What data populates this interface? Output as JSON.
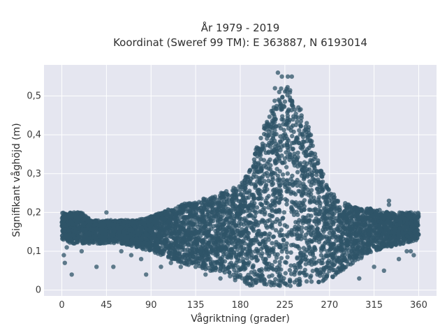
{
  "chart_data": {
    "type": "scatter",
    "title_lines": [
      "År 1979 - 2019",
      "Koordinat (Sweref 99 TM): E 363887, N 6193014"
    ],
    "xlabel": "Vågriktning (grader)",
    "ylabel": "Signifikant våghöjd (m)",
    "xlim": [
      -18,
      378
    ],
    "ylim": [
      -0.015,
      0.58
    ],
    "xticks": [
      0,
      45,
      90,
      135,
      180,
      225,
      270,
      315,
      360
    ],
    "xtick_labels": [
      "0",
      "45",
      "90",
      "135",
      "180",
      "225",
      "270",
      "315",
      "360"
    ],
    "yticks": [
      0,
      0.1,
      0.2,
      0.3,
      0.4,
      0.5
    ],
    "ytick_labels": [
      "0",
      "0,1",
      "0,2",
      "0,3",
      "0,4",
      "0,5"
    ],
    "grid": true,
    "colors": {
      "marker": "#2f5468",
      "plot_bg": "#e5e6f0",
      "grid": "#ffffff"
    },
    "envelope": {
      "x": [
        0,
        10,
        20,
        30,
        45,
        60,
        75,
        90,
        100,
        110,
        120,
        135,
        150,
        160,
        170,
        180,
        190,
        200,
        210,
        220,
        225,
        230,
        240,
        250,
        260,
        270,
        280,
        290,
        300,
        315,
        330,
        345,
        360
      ],
      "upper": [
        0.2,
        0.2,
        0.2,
        0.18,
        0.18,
        0.18,
        0.18,
        0.19,
        0.2,
        0.21,
        0.22,
        0.23,
        0.24,
        0.25,
        0.26,
        0.27,
        0.31,
        0.4,
        0.46,
        0.52,
        0.53,
        0.52,
        0.47,
        0.42,
        0.32,
        0.26,
        0.23,
        0.22,
        0.21,
        0.21,
        0.2,
        0.2,
        0.2
      ],
      "lower": [
        0.13,
        0.12,
        0.12,
        0.12,
        0.12,
        0.12,
        0.11,
        0.1,
        0.09,
        0.08,
        0.07,
        0.06,
        0.05,
        0.04,
        0.03,
        0.02,
        0.01,
        0.01,
        0.01,
        0.01,
        0.01,
        0.01,
        0.01,
        0.01,
        0.02,
        0.03,
        0.04,
        0.06,
        0.08,
        0.1,
        0.11,
        0.12,
        0.13
      ]
    },
    "outliers": [
      {
        "x": 2,
        "y": 0.09
      },
      {
        "x": 3,
        "y": 0.07
      },
      {
        "x": 5,
        "y": 0.11
      },
      {
        "x": 10,
        "y": 0.04
      },
      {
        "x": 20,
        "y": 0.1
      },
      {
        "x": 35,
        "y": 0.06
      },
      {
        "x": 45,
        "y": 0.2
      },
      {
        "x": 52,
        "y": 0.06
      },
      {
        "x": 60,
        "y": 0.1
      },
      {
        "x": 70,
        "y": 0.09
      },
      {
        "x": 80,
        "y": 0.08
      },
      {
        "x": 85,
        "y": 0.04
      },
      {
        "x": 95,
        "y": 0.1
      },
      {
        "x": 100,
        "y": 0.06
      },
      {
        "x": 110,
        "y": 0.07
      },
      {
        "x": 120,
        "y": 0.06
      },
      {
        "x": 130,
        "y": 0.08
      },
      {
        "x": 135,
        "y": 0.06
      },
      {
        "x": 145,
        "y": 0.04
      },
      {
        "x": 150,
        "y": 0.05
      },
      {
        "x": 160,
        "y": 0.03
      },
      {
        "x": 218,
        "y": 0.56
      },
      {
        "x": 222,
        "y": 0.55
      },
      {
        "x": 228,
        "y": 0.55
      },
      {
        "x": 232,
        "y": 0.55
      },
      {
        "x": 215,
        "y": 0.52
      },
      {
        "x": 300,
        "y": 0.03
      },
      {
        "x": 315,
        "y": 0.06
      },
      {
        "x": 325,
        "y": 0.05
      },
      {
        "x": 340,
        "y": 0.08
      },
      {
        "x": 348,
        "y": 0.1
      },
      {
        "x": 352,
        "y": 0.1
      },
      {
        "x": 355,
        "y": 0.09
      },
      {
        "x": 330,
        "y": 0.23
      },
      {
        "x": 330,
        "y": 0.22
      }
    ]
  }
}
